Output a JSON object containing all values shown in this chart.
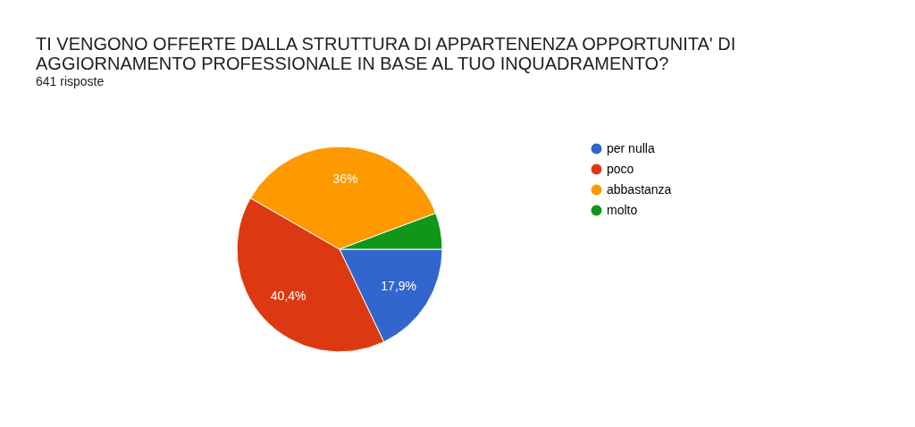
{
  "chart_data": {
    "type": "pie",
    "title": [
      "TI VENGONO OFFERTE DALLA STRUTTURA DI APPARTENENZA OPPORTUNITA' DI",
      "AGGIORNAMENTO PROFESSIONALE IN BASE AL TUO INQUADRAMENTO?"
    ],
    "subtitle": "641 risposte",
    "categories": [
      "per nulla",
      "poco",
      "abbastanza",
      "molto"
    ],
    "values": [
      17.9,
      40.4,
      36,
      5.7
    ],
    "value_labels": [
      "17,9%",
      "40,4%",
      "36%",
      null
    ],
    "colors": [
      "#3366cc",
      "#dc3912",
      "#ff9900",
      "#109618"
    ],
    "legend": "right"
  }
}
